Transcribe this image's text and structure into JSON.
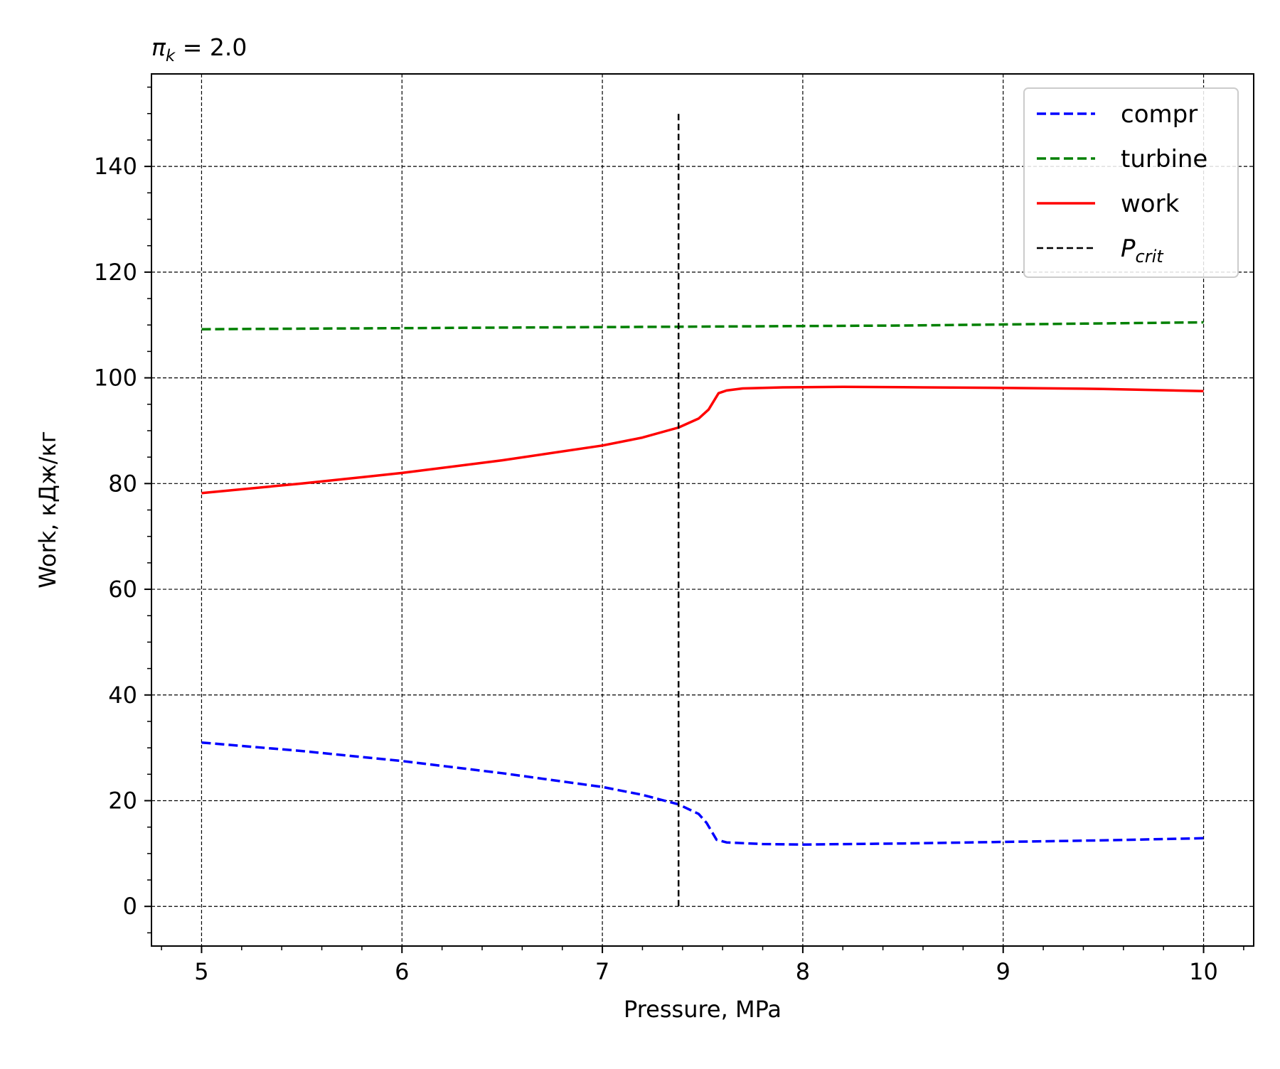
{
  "chart_data": {
    "type": "line",
    "title": {
      "symbol": "π",
      "subscript": "k",
      "rest": " = 2.0"
    },
    "xlabel": "Pressure, MPa",
    "ylabel": "Work, кДж/кг",
    "xlim": [
      4.75,
      10.25
    ],
    "ylim": [
      -7.5,
      157.5
    ],
    "x_ticks": [
      5,
      6,
      7,
      8,
      9,
      10
    ],
    "y_ticks": [
      0,
      20,
      40,
      60,
      80,
      100,
      120,
      140
    ],
    "x_tick_labels": [
      "5",
      "6",
      "7",
      "8",
      "9",
      "10"
    ],
    "y_tick_labels": [
      "0",
      "20",
      "40",
      "60",
      "80",
      "100",
      "120",
      "140"
    ],
    "grid": true,
    "legend_position": "top-right",
    "series": [
      {
        "name": "compr",
        "style": "dashed",
        "color": "#0000ff",
        "x": [
          5.0,
          5.5,
          6.0,
          6.5,
          7.0,
          7.2,
          7.38,
          7.48,
          7.52,
          7.57,
          7.62,
          7.8,
          8.0,
          8.5,
          9.0,
          9.5,
          10.0
        ],
        "y": [
          31.0,
          29.4,
          27.5,
          25.2,
          22.6,
          21.1,
          19.3,
          17.5,
          15.8,
          12.6,
          12.1,
          11.8,
          11.7,
          11.9,
          12.2,
          12.5,
          12.9
        ]
      },
      {
        "name": "turbine",
        "style": "dashed",
        "color": "#008000",
        "x": [
          5.0,
          5.5,
          6.0,
          6.5,
          7.0,
          7.5,
          8.0,
          8.5,
          9.0,
          9.5,
          10.0
        ],
        "y": [
          109.2,
          109.3,
          109.4,
          109.5,
          109.6,
          109.7,
          109.8,
          109.9,
          110.1,
          110.3,
          110.5
        ]
      },
      {
        "name": "work",
        "style": "solid",
        "color": "#ff0000",
        "x": [
          5.0,
          5.5,
          6.0,
          6.5,
          7.0,
          7.2,
          7.38,
          7.48,
          7.53,
          7.58,
          7.62,
          7.7,
          7.9,
          8.2,
          8.6,
          9.0,
          9.5,
          10.0
        ],
        "y": [
          78.2,
          80.0,
          82.0,
          84.4,
          87.2,
          88.7,
          90.6,
          92.3,
          94.0,
          97.1,
          97.6,
          98.0,
          98.2,
          98.3,
          98.2,
          98.1,
          97.9,
          97.5
        ]
      },
      {
        "name_symbol": "P",
        "name_subscript": "crit",
        "style": "dashed",
        "color": "#000000",
        "x": [
          7.38,
          7.38
        ],
        "y": [
          0,
          150
        ]
      }
    ]
  }
}
